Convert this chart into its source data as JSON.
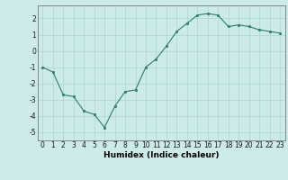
{
  "x": [
    0,
    1,
    2,
    3,
    4,
    5,
    6,
    7,
    8,
    9,
    10,
    11,
    12,
    13,
    14,
    15,
    16,
    17,
    18,
    19,
    20,
    21,
    22,
    23
  ],
  "y": [
    -1.0,
    -1.3,
    -2.7,
    -2.8,
    -3.7,
    -3.9,
    -4.7,
    -3.4,
    -2.5,
    -2.4,
    -1.0,
    -0.5,
    0.3,
    1.2,
    1.7,
    2.2,
    2.3,
    2.2,
    1.5,
    1.6,
    1.5,
    1.3,
    1.2,
    1.1
  ],
  "xlabel": "Humidex (Indice chaleur)",
  "xlim": [
    -0.5,
    23.5
  ],
  "ylim": [
    -5.5,
    2.8
  ],
  "yticks": [
    -5,
    -4,
    -3,
    -2,
    -1,
    0,
    1,
    2
  ],
  "xticks": [
    0,
    1,
    2,
    3,
    4,
    5,
    6,
    7,
    8,
    9,
    10,
    11,
    12,
    13,
    14,
    15,
    16,
    17,
    18,
    19,
    20,
    21,
    22,
    23
  ],
  "line_color": "#2d7d6e",
  "marker_color": "#2d7d6e",
  "bg_color": "#cceae7",
  "grid_color": "#add4d0",
  "tick_fontsize": 5.5,
  "xlabel_fontsize": 6.5
}
